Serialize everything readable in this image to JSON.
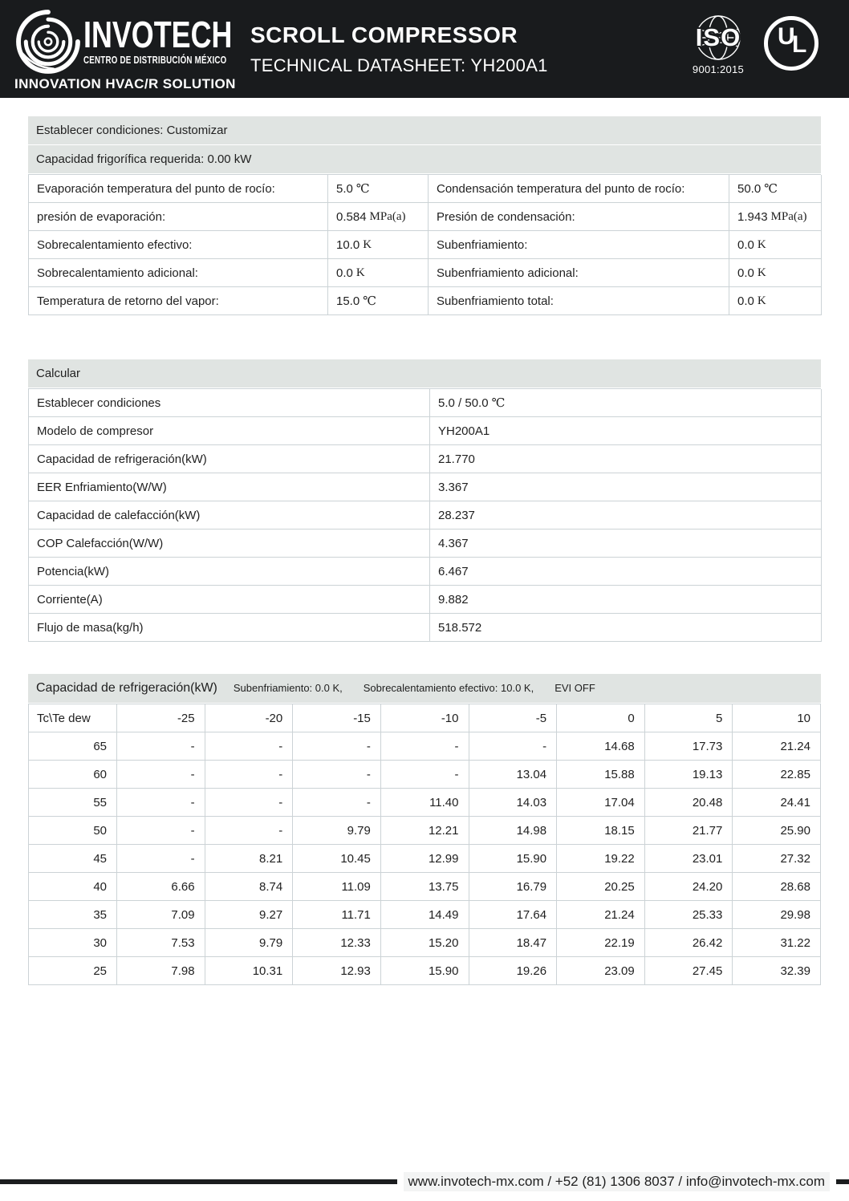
{
  "header": {
    "logo": {
      "name": "INVOTECH",
      "sub1": "CENTRO DE DISTRIBUCIÓN MÉXICO",
      "sub2": "INNOVATION HVAC/R SOLUTION"
    },
    "title": "SCROLL COMPRESSOR",
    "subtitle": "TECHNICAL DATASHEET: YH200A1",
    "iso_badge": {
      "text": "ISO",
      "standard": "9001:2015"
    },
    "ul_badge": {
      "u": "U",
      "l": "L"
    }
  },
  "conditions": {
    "header_line1": "Establecer condiciones: Customizar",
    "header_line2": "Capacidad frigorífica requerida: 0.00 kW",
    "rows": [
      {
        "left_label": "Evaporación temperatura del punto de rocío:",
        "left_value": "5.0",
        "left_unit": "℃",
        "right_label": "Condensación temperatura del punto de rocío:",
        "right_value": "50.0",
        "right_unit": "℃"
      },
      {
        "left_label": "presión de evaporación:",
        "left_value": "0.584",
        "left_unit": "MPa(a)",
        "right_label": "Presión de condensación:",
        "right_value": "1.943",
        "right_unit": "MPa(a)"
      },
      {
        "left_label": "Sobrecalentamiento efectivo:",
        "left_value": "10.0",
        "left_unit": "K",
        "right_label": "Subenfriamiento:",
        "right_value": "0.0",
        "right_unit": "K"
      },
      {
        "left_label": "Sobrecalentamiento adicional:",
        "left_value": "0.0",
        "left_unit": "K",
        "right_label": "Subenfriamiento adicional:",
        "right_value": "0.0",
        "right_unit": "K"
      },
      {
        "left_label": "Temperatura de retorno del vapor:",
        "left_value": "15.0",
        "left_unit": "℃",
        "right_label": "Subenfriamiento total:",
        "right_value": "0.0",
        "right_unit": "K"
      }
    ]
  },
  "calculate": {
    "header": "Calcular",
    "rows": [
      {
        "label": "Establecer condiciones",
        "value": "5.0 / 50.0",
        "unit": "℃"
      },
      {
        "label": "Modelo de compresor",
        "value": "YH200A1",
        "unit": ""
      },
      {
        "label": "Capacidad de refrigeración(kW)",
        "value": "21.770",
        "unit": ""
      },
      {
        "label": "EER Enfriamiento(W/W)",
        "value": "3.367",
        "unit": ""
      },
      {
        "label": "Capacidad de calefacción(kW)",
        "value": "28.237",
        "unit": ""
      },
      {
        "label": "COP Calefacción(W/W)",
        "value": "4.367",
        "unit": ""
      },
      {
        "label": "Potencia(kW)",
        "value": "6.467",
        "unit": ""
      },
      {
        "label": "Corriente(A)",
        "value": "9.882",
        "unit": ""
      },
      {
        "label": "Flujo de masa(kg/h)",
        "value": "518.572",
        "unit": ""
      }
    ]
  },
  "capacity_table": {
    "title": "Capacidad de refrigeración(kW)",
    "subtitle_segments": [
      "Subenfriamiento: 0.0 K,",
      "Sobrecalentamiento efectivo: 10.0 K,",
      "EVI OFF"
    ],
    "corner": "Tc\\Te dew",
    "col_headers": [
      "-25",
      "-20",
      "-15",
      "-10",
      "-5",
      "0",
      "5",
      "10"
    ],
    "rows": [
      {
        "tc": "65",
        "values": [
          "-",
          "-",
          "-",
          "-",
          "-",
          "14.68",
          "17.73",
          "21.24"
        ]
      },
      {
        "tc": "60",
        "values": [
          "-",
          "-",
          "-",
          "-",
          "13.04",
          "15.88",
          "19.13",
          "22.85"
        ]
      },
      {
        "tc": "55",
        "values": [
          "-",
          "-",
          "-",
          "11.40",
          "14.03",
          "17.04",
          "20.48",
          "24.41"
        ]
      },
      {
        "tc": "50",
        "values": [
          "-",
          "-",
          "9.79",
          "12.21",
          "14.98",
          "18.15",
          "21.77",
          "25.90"
        ]
      },
      {
        "tc": "45",
        "values": [
          "-",
          "8.21",
          "10.45",
          "12.99",
          "15.90",
          "19.22",
          "23.01",
          "27.32"
        ]
      },
      {
        "tc": "40",
        "values": [
          "6.66",
          "8.74",
          "11.09",
          "13.75",
          "16.79",
          "20.25",
          "24.20",
          "28.68"
        ]
      },
      {
        "tc": "35",
        "values": [
          "7.09",
          "9.27",
          "11.71",
          "14.49",
          "17.64",
          "21.24",
          "25.33",
          "29.98"
        ]
      },
      {
        "tc": "30",
        "values": [
          "7.53",
          "9.79",
          "12.33",
          "15.20",
          "18.47",
          "22.19",
          "26.42",
          "31.22"
        ]
      },
      {
        "tc": "25",
        "values": [
          "7.98",
          "10.31",
          "12.93",
          "15.90",
          "19.26",
          "23.09",
          "27.45",
          "32.39"
        ]
      }
    ]
  },
  "footer": {
    "text": "www.invotech-mx.com / +52 (81) 1306 8037 / info@invotech-mx.com"
  },
  "colors": {
    "header_bg": "#191b1d",
    "section_header_bg": "#e0e4e2",
    "table_border": "#ccd3d6",
    "text": "#1f1f1f"
  }
}
